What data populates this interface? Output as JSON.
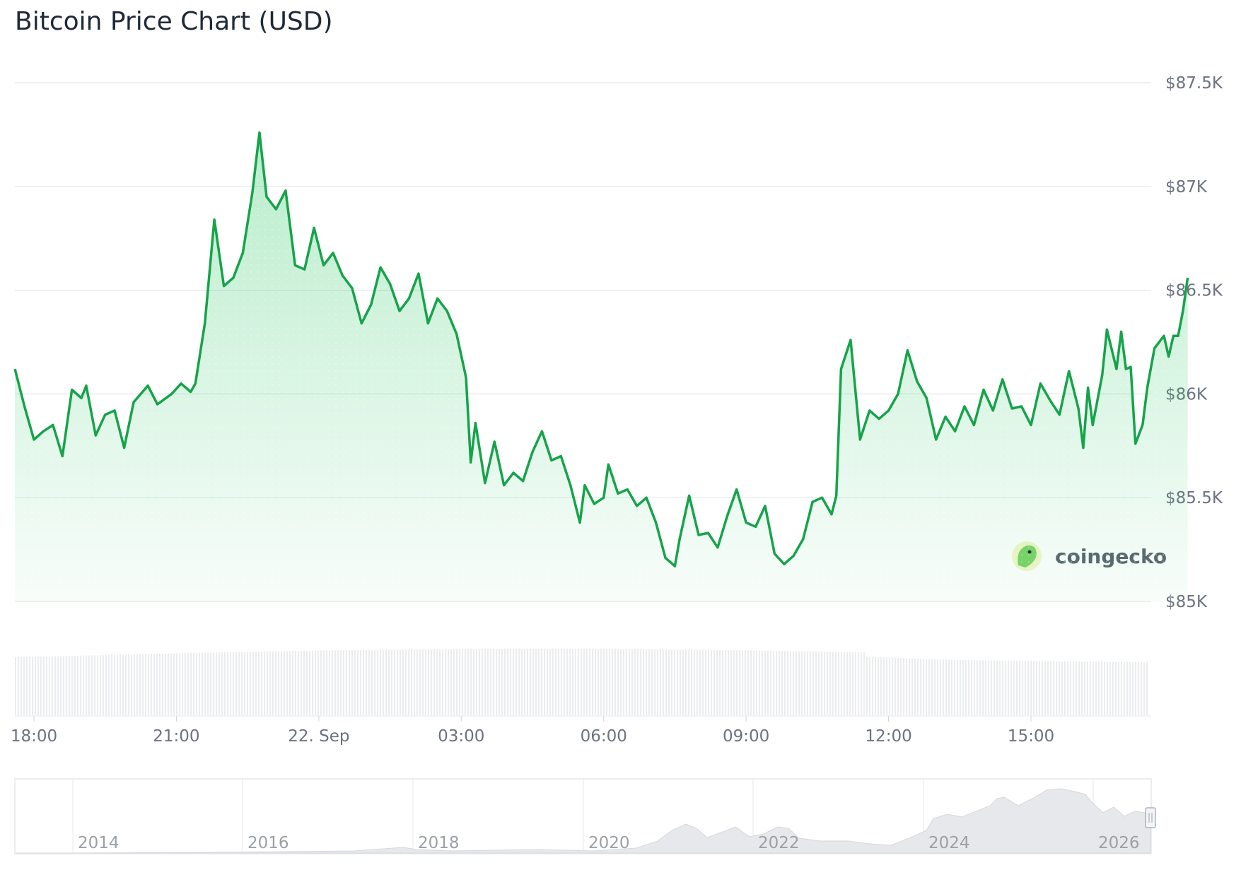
{
  "chart_data": {
    "type": "area",
    "title": "Bitcoin Price Chart (USD)",
    "currency": "USD",
    "y_ticks": [
      "$85K",
      "$85.5K",
      "$86K",
      "$86.5K",
      "$87K",
      "$87.5K"
    ],
    "y_tick_values": [
      85000,
      85500,
      86000,
      86500,
      87000,
      87500
    ],
    "ylim": [
      85000,
      87500
    ],
    "x_ticks": [
      "18:00",
      "21:00",
      "22. Sep",
      "03:00",
      "06:00",
      "09:00",
      "12:00",
      "15:00"
    ],
    "x_tick_hours": [
      0,
      3,
      6,
      9,
      12,
      15,
      18,
      21
    ],
    "xlim_hours": [
      -0.4,
      23.64
    ],
    "grid": true,
    "line_color": "#16a34a",
    "fill_color": "#22c55e",
    "series": [
      {
        "points": [
          [
            -0.4,
            86120
          ],
          [
            -0.2,
            85940
          ],
          [
            0.0,
            85780
          ],
          [
            0.2,
            85820
          ],
          [
            0.4,
            85850
          ],
          [
            0.6,
            85700
          ],
          [
            0.8,
            86020
          ],
          [
            1.0,
            85980
          ],
          [
            1.1,
            86040
          ],
          [
            1.3,
            85800
          ],
          [
            1.5,
            85900
          ],
          [
            1.7,
            85920
          ],
          [
            1.9,
            85740
          ],
          [
            2.1,
            85960
          ],
          [
            2.4,
            86040
          ],
          [
            2.6,
            85950
          ],
          [
            2.9,
            86000
          ],
          [
            3.1,
            86050
          ],
          [
            3.3,
            86010
          ],
          [
            3.4,
            86050
          ],
          [
            3.6,
            86340
          ],
          [
            3.8,
            86840
          ],
          [
            4.0,
            86520
          ],
          [
            4.2,
            86560
          ],
          [
            4.4,
            86680
          ],
          [
            4.6,
            86970
          ],
          [
            4.75,
            87260
          ],
          [
            4.9,
            86950
          ],
          [
            5.1,
            86890
          ],
          [
            5.3,
            86980
          ],
          [
            5.5,
            86620
          ],
          [
            5.7,
            86600
          ],
          [
            5.9,
            86800
          ],
          [
            6.1,
            86620
          ],
          [
            6.3,
            86680
          ],
          [
            6.5,
            86570
          ],
          [
            6.7,
            86510
          ],
          [
            6.9,
            86340
          ],
          [
            7.1,
            86430
          ],
          [
            7.3,
            86610
          ],
          [
            7.5,
            86530
          ],
          [
            7.7,
            86400
          ],
          [
            7.9,
            86460
          ],
          [
            8.1,
            86580
          ],
          [
            8.3,
            86340
          ],
          [
            8.5,
            86460
          ],
          [
            8.7,
            86400
          ],
          [
            8.9,
            86290
          ],
          [
            9.1,
            86080
          ],
          [
            9.2,
            85670
          ],
          [
            9.3,
            85860
          ],
          [
            9.5,
            85570
          ],
          [
            9.7,
            85770
          ],
          [
            9.9,
            85560
          ],
          [
            10.1,
            85620
          ],
          [
            10.3,
            85580
          ],
          [
            10.5,
            85720
          ],
          [
            10.7,
            85820
          ],
          [
            10.9,
            85680
          ],
          [
            11.1,
            85700
          ],
          [
            11.3,
            85560
          ],
          [
            11.5,
            85380
          ],
          [
            11.6,
            85560
          ],
          [
            11.8,
            85470
          ],
          [
            12.0,
            85500
          ],
          [
            12.1,
            85660
          ],
          [
            12.3,
            85520
          ],
          [
            12.5,
            85540
          ],
          [
            12.7,
            85460
          ],
          [
            12.9,
            85500
          ],
          [
            13.1,
            85380
          ],
          [
            13.3,
            85210
          ],
          [
            13.5,
            85170
          ],
          [
            13.6,
            85300
          ],
          [
            13.8,
            85510
          ],
          [
            14.0,
            85320
          ],
          [
            14.2,
            85330
          ],
          [
            14.4,
            85260
          ],
          [
            14.6,
            85410
          ],
          [
            14.8,
            85540
          ],
          [
            15.0,
            85380
          ],
          [
            15.2,
            85360
          ],
          [
            15.4,
            85460
          ],
          [
            15.6,
            85230
          ],
          [
            15.8,
            85180
          ],
          [
            16.0,
            85220
          ],
          [
            16.2,
            85300
          ],
          [
            16.4,
            85480
          ],
          [
            16.6,
            85500
          ],
          [
            16.8,
            85420
          ],
          [
            16.9,
            85510
          ],
          [
            17.0,
            86120
          ],
          [
            17.2,
            86260
          ],
          [
            17.4,
            85780
          ],
          [
            17.6,
            85920
          ],
          [
            17.8,
            85880
          ],
          [
            18.0,
            85920
          ],
          [
            18.2,
            86000
          ],
          [
            18.4,
            86210
          ],
          [
            18.6,
            86060
          ],
          [
            18.8,
            85980
          ],
          [
            19.0,
            85780
          ],
          [
            19.2,
            85890
          ],
          [
            19.4,
            85820
          ],
          [
            19.6,
            85940
          ],
          [
            19.8,
            85850
          ],
          [
            20.0,
            86020
          ],
          [
            20.2,
            85920
          ],
          [
            20.4,
            86070
          ],
          [
            20.6,
            85930
          ],
          [
            20.8,
            85940
          ],
          [
            21.0,
            85850
          ],
          [
            21.2,
            86050
          ],
          [
            21.4,
            85970
          ],
          [
            21.6,
            85900
          ],
          [
            21.8,
            86110
          ],
          [
            22.0,
            85930
          ],
          [
            22.1,
            85740
          ],
          [
            22.2,
            86030
          ],
          [
            22.3,
            85850
          ],
          [
            22.5,
            86090
          ],
          [
            22.6,
            86310
          ],
          [
            22.8,
            86120
          ],
          [
            22.9,
            86300
          ],
          [
            23.0,
            86120
          ],
          [
            23.1,
            86130
          ],
          [
            23.2,
            85760
          ],
          [
            23.35,
            85850
          ],
          [
            23.45,
            86030
          ],
          [
            23.6,
            86220
          ],
          [
            23.8,
            86280
          ],
          [
            23.9,
            86180
          ],
          [
            24.0,
            86280
          ],
          [
            24.1,
            86280
          ],
          [
            24.2,
            86400
          ],
          [
            24.3,
            86560
          ]
        ]
      }
    ],
    "navigator": {
      "x_ticks": [
        "2014",
        "2016",
        "2018",
        "2020",
        "2022",
        "2024",
        "2026"
      ]
    },
    "watermark": "coingecko"
  }
}
